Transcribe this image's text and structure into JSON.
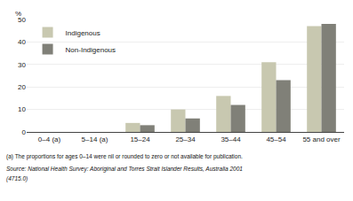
{
  "chart_data": {
    "type": "bar",
    "categories": [
      "0–4 (a)",
      "5–14 (a)",
      "15–24",
      "25–34",
      "35–44",
      "45–54",
      "55 and over"
    ],
    "series": [
      {
        "name": "Indigenous",
        "color": "#c8c8b0",
        "values": [
          0,
          0,
          4,
          10,
          16,
          31,
          47
        ]
      },
      {
        "name": "Non-Indigenous",
        "color": "#808078",
        "values": [
          0,
          0,
          3,
          6,
          12,
          23,
          48
        ]
      }
    ],
    "ylabel": "%",
    "ylim": [
      0,
      50
    ],
    "yticks": [
      0,
      10,
      20,
      30,
      40,
      50
    ],
    "grid": true,
    "legend": "upper left",
    "annotations": [
      "(a) The proportions for ages 0–14 were nil or rounded to zero or not available for publication.",
      "Source: National Health Survey: Aboriginal and Torres Strait Islander Results, Australia 2001",
      "(4715.0)"
    ]
  }
}
